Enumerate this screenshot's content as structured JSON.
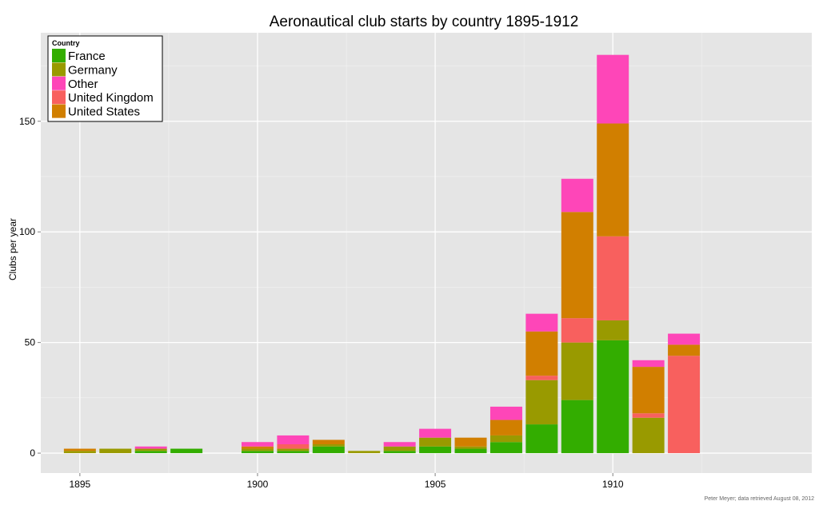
{
  "chart_data": {
    "type": "bar",
    "stacked": true,
    "title": "Aeronautical club starts by country 1895-1912",
    "xlabel": "",
    "ylabel": "Clubs per year",
    "caption": "Peter Meyer; data retrieved August 08, 2012",
    "x": [
      1895,
      1896,
      1897,
      1898,
      1899,
      1900,
      1901,
      1902,
      1903,
      1904,
      1905,
      1906,
      1907,
      1908,
      1909,
      1910,
      1911,
      1912
    ],
    "xticks": [
      1895,
      1900,
      1905,
      1910
    ],
    "yticks": [
      0,
      50,
      100,
      150
    ],
    "xlim": [
      1893.9,
      1915.6
    ],
    "ylim": [
      -9,
      190
    ],
    "grid": true,
    "legend": {
      "title": "Country",
      "placement": "top-left",
      "entries": [
        "France",
        "Germany",
        "Other",
        "United Kingdom",
        "United States"
      ]
    },
    "series": [
      {
        "name": "France",
        "color": "#33ad00",
        "values": [
          0,
          0,
          1,
          2,
          0,
          1,
          1,
          3,
          0,
          1,
          3,
          2,
          5,
          13,
          24,
          51,
          0,
          0
        ]
      },
      {
        "name": "Germany",
        "color": "#999a00",
        "values": [
          1,
          2,
          1,
          0,
          0,
          1,
          1,
          1,
          1,
          2,
          4,
          1,
          3,
          20,
          26,
          9,
          16,
          0
        ]
      },
      {
        "name": "United Kingdom",
        "color": "#f8605e",
        "values": [
          0,
          0,
          0,
          0,
          0,
          0,
          2,
          0,
          0,
          0,
          0,
          0,
          0,
          2,
          11,
          38,
          2,
          44
        ]
      },
      {
        "name": "United States",
        "color": "#d17f00",
        "values": [
          1,
          0,
          0,
          0,
          0,
          1,
          0,
          2,
          0,
          0,
          0,
          4,
          7,
          20,
          48,
          51,
          21,
          5
        ]
      },
      {
        "name": "Other",
        "color": "#fe46b8",
        "values": [
          0,
          0,
          1,
          0,
          0,
          2,
          4,
          0,
          0,
          2,
          4,
          0,
          6,
          8,
          15,
          31,
          3,
          5
        ]
      }
    ]
  }
}
